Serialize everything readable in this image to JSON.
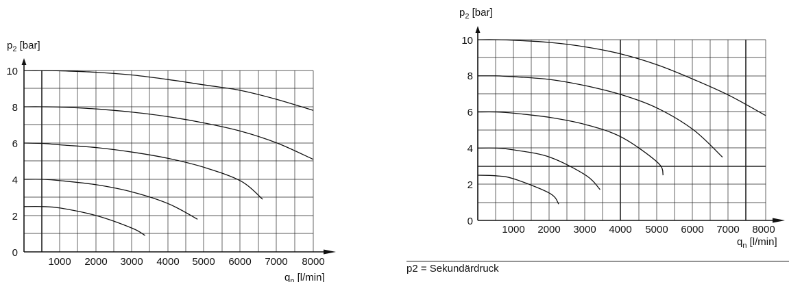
{
  "chart_data": [
    {
      "type": "line",
      "title": "",
      "ylabel": "p2 [bar]",
      "xlabel": "qn [l/min]",
      "xlim": [
        0,
        8000
      ],
      "ylim": [
        0,
        10
      ],
      "x_ticks": [
        "1000",
        "2000",
        "3000",
        "4000",
        "5000",
        "6000",
        "7000",
        "8000"
      ],
      "y_ticks": [
        "0",
        "2",
        "4",
        "6",
        "8",
        "10"
      ],
      "grid": true,
      "series": [
        {
          "x": [
            0,
            500,
            1000,
            2000,
            3000,
            4000,
            5000,
            6000,
            7000,
            8000
          ],
          "y": [
            10,
            10,
            9.98,
            9.9,
            9.75,
            9.5,
            9.2,
            8.9,
            8.4,
            7.8
          ]
        },
        {
          "x": [
            0,
            500,
            1000,
            2000,
            3000,
            4000,
            5000,
            6000,
            7000,
            8000
          ],
          "y": [
            8,
            8,
            7.98,
            7.88,
            7.7,
            7.45,
            7.1,
            6.65,
            6.0,
            5.1
          ]
        },
        {
          "x": [
            0,
            500,
            1000,
            2000,
            3000,
            4000,
            5000,
            6000,
            6600
          ],
          "y": [
            6,
            5.98,
            5.9,
            5.75,
            5.5,
            5.15,
            4.65,
            3.9,
            2.9
          ]
        },
        {
          "x": [
            0,
            500,
            1000,
            2000,
            3000,
            4000,
            4800
          ],
          "y": [
            4,
            4,
            3.93,
            3.7,
            3.3,
            2.65,
            1.8
          ]
        },
        {
          "x": [
            0,
            500,
            1000,
            2000,
            3000,
            3350
          ],
          "y": [
            2.5,
            2.5,
            2.42,
            2.0,
            1.3,
            0.9
          ]
        }
      ]
    },
    {
      "type": "line",
      "title": "",
      "ylabel": "p2 [bar]",
      "xlabel": "qn [l/min]",
      "xlim": [
        0,
        8000
      ],
      "ylim": [
        0,
        10
      ],
      "x_ticks": [
        "1000",
        "2000",
        "3000",
        "4000",
        "5000",
        "6000",
        "7000",
        "8000"
      ],
      "y_ticks": [
        "0",
        "2",
        "4",
        "6",
        "8",
        "10"
      ],
      "grid": true,
      "series": [
        {
          "x": [
            0,
            500,
            1000,
            2000,
            3000,
            4000,
            5000,
            6000,
            7000,
            8000
          ],
          "y": [
            10,
            10,
            9.97,
            9.85,
            9.6,
            9.2,
            8.6,
            7.8,
            6.9,
            5.8
          ]
        },
        {
          "x": [
            0,
            500,
            1000,
            2000,
            3000,
            4000,
            5000,
            6000,
            6800
          ],
          "y": [
            8,
            8,
            7.95,
            7.8,
            7.45,
            6.95,
            6.2,
            5.0,
            3.5
          ]
        },
        {
          "x": [
            0,
            500,
            1000,
            2000,
            3000,
            4000,
            5000,
            5150
          ],
          "y": [
            6,
            6,
            5.93,
            5.7,
            5.3,
            4.6,
            3.2,
            2.5
          ]
        },
        {
          "x": [
            0,
            500,
            1000,
            2000,
            3000,
            3400
          ],
          "y": [
            4,
            4,
            3.9,
            3.5,
            2.5,
            1.7
          ]
        },
        {
          "x": [
            0,
            500,
            1000,
            2000,
            2250
          ],
          "y": [
            2.5,
            2.47,
            2.3,
            1.5,
            0.9
          ]
        }
      ]
    }
  ],
  "footnote": "p2 = Sekundärdruck"
}
